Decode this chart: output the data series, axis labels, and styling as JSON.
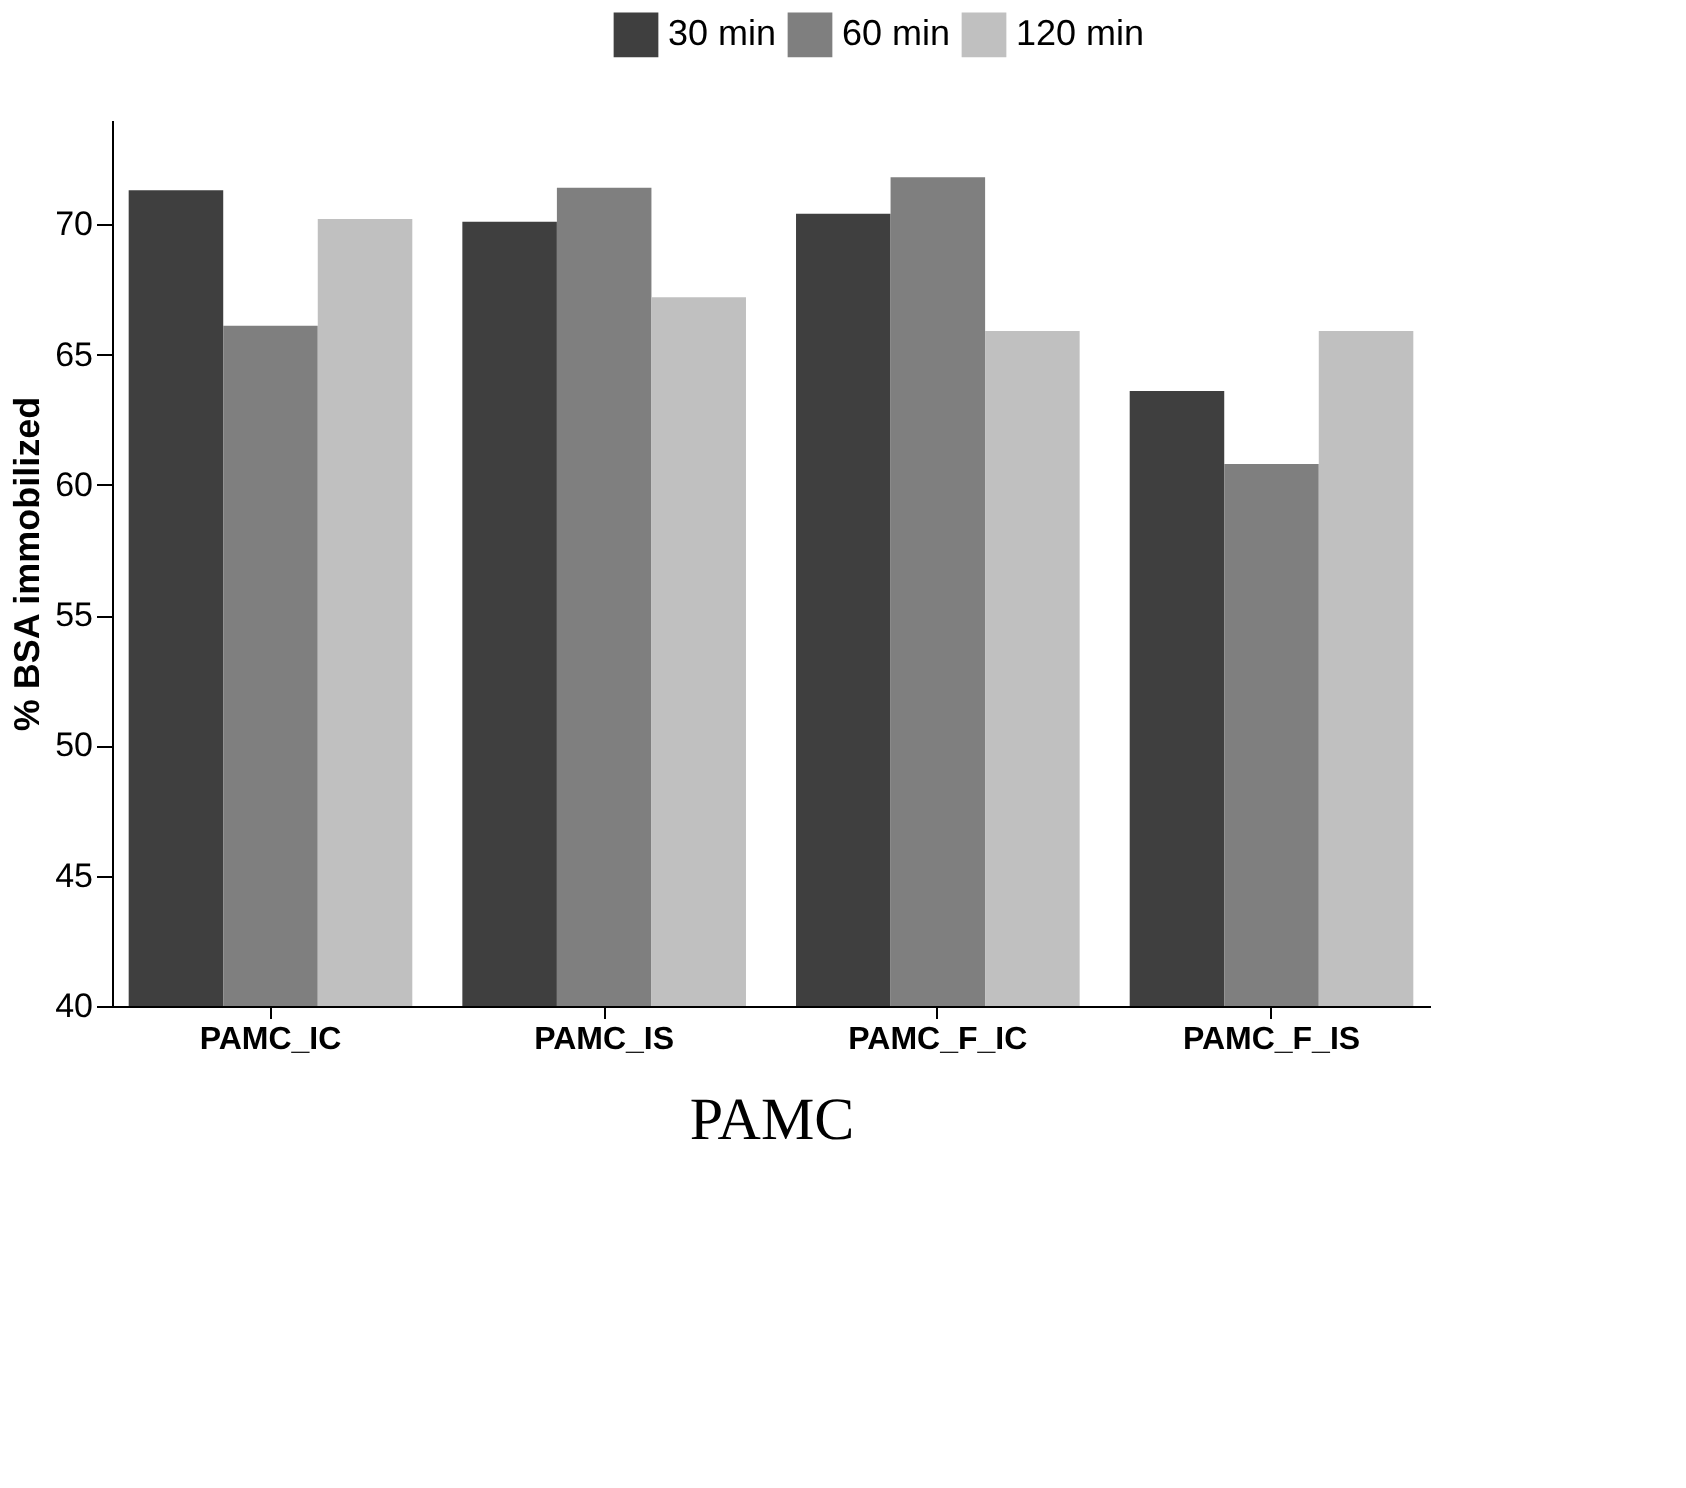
{
  "chart_data": {
    "type": "bar",
    "xlabel": "PAMC",
    "ylabel": "% BSA immobilized",
    "categories": [
      "PAMC_IC",
      "PAMC_IS",
      "PAMC_F_IC",
      "PAMC_F_IS"
    ],
    "series": [
      {
        "name": "30 min",
        "color": "#3f3f3f",
        "values": [
          71.3,
          70.1,
          70.4,
          63.6
        ]
      },
      {
        "name": "60 min",
        "color": "#7f7f7f",
        "values": [
          66.1,
          71.4,
          71.8,
          60.8
        ]
      },
      {
        "name": "120 min",
        "color": "#c0c0c0",
        "values": [
          70.2,
          67.2,
          65.9,
          65.9
        ]
      }
    ],
    "ylim": [
      40,
      74
    ],
    "yticks": [
      40,
      45,
      50,
      55,
      60,
      65,
      70
    ],
    "grid": false,
    "legend": "top right"
  }
}
